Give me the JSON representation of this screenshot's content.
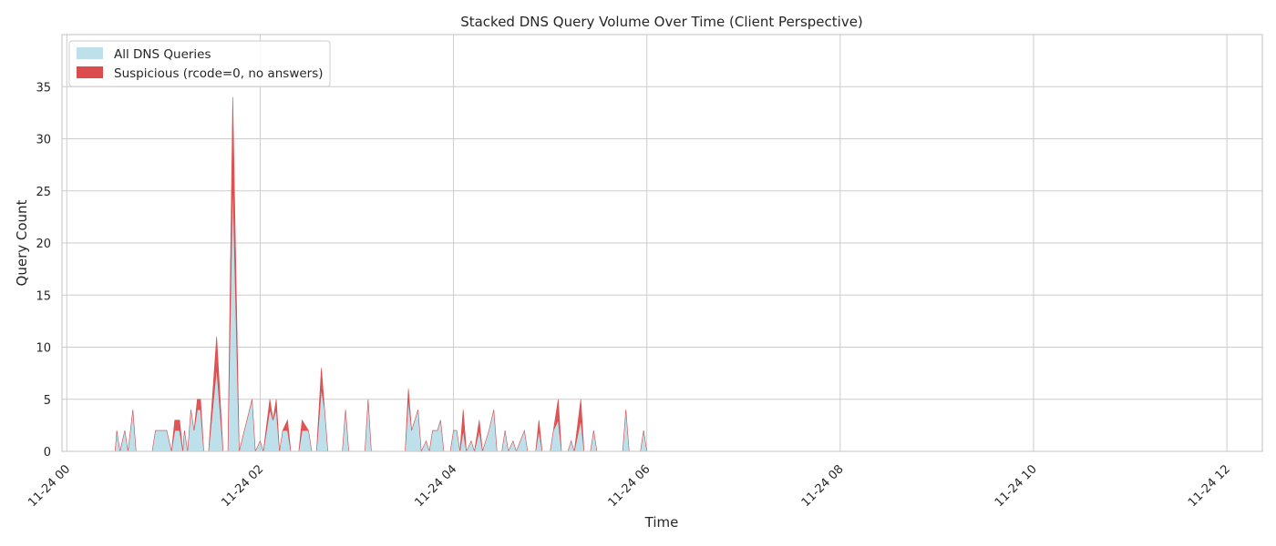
{
  "chart_data": {
    "type": "area",
    "stacked": true,
    "title": "Stacked DNS Query Volume Over Time (Client Perspective)",
    "xlabel": "Time",
    "ylabel": "Query Count",
    "xlim": [
      "2024-11-23T23:57",
      "2024-11-24T12:22"
    ],
    "ylim": [
      0,
      40
    ],
    "x_ticks": [
      "11-24 00",
      "11-24 02",
      "11-24 04",
      "11-24 06",
      "11-24 08",
      "11-24 10",
      "11-24 12"
    ],
    "y_ticks": [
      0,
      5,
      10,
      15,
      20,
      25,
      30,
      35
    ],
    "grid": true,
    "legend_position": "top-left",
    "series": [
      {
        "name": "All DNS Queries",
        "color": "#add8e6",
        "points": [
          [
            "2024-11-24T00:00",
            0
          ],
          [
            "2024-11-24T00:30",
            0
          ],
          [
            "2024-11-24T00:31",
            2
          ],
          [
            "2024-11-24T00:33",
            0
          ],
          [
            "2024-11-24T00:36",
            2
          ],
          [
            "2024-11-24T00:38",
            0
          ],
          [
            "2024-11-24T00:41",
            4
          ],
          [
            "2024-11-24T00:43",
            0
          ],
          [
            "2024-11-24T00:53",
            0
          ],
          [
            "2024-11-24T00:55",
            2
          ],
          [
            "2024-11-24T01:02",
            2
          ],
          [
            "2024-11-24T01:05",
            0
          ],
          [
            "2024-11-24T01:07",
            2
          ],
          [
            "2024-11-24T01:10",
            2
          ],
          [
            "2024-11-24T01:12",
            0
          ],
          [
            "2024-11-24T01:13",
            2
          ],
          [
            "2024-11-24T01:15",
            0
          ],
          [
            "2024-11-24T01:17",
            4
          ],
          [
            "2024-11-24T01:19",
            2
          ],
          [
            "2024-11-24T01:21",
            4
          ],
          [
            "2024-11-24T01:23",
            4
          ],
          [
            "2024-11-24T01:25",
            0
          ],
          [
            "2024-11-24T01:28",
            0
          ],
          [
            "2024-11-24T01:33",
            8
          ],
          [
            "2024-11-24T01:37",
            0
          ],
          [
            "2024-11-24T01:40",
            0
          ],
          [
            "2024-11-24T01:43",
            26
          ],
          [
            "2024-11-24T01:47",
            0
          ],
          [
            "2024-11-24T01:55",
            5
          ],
          [
            "2024-11-24T01:57",
            0
          ],
          [
            "2024-11-24T02:00",
            1
          ],
          [
            "2024-11-24T02:02",
            0
          ],
          [
            "2024-11-24T02:06",
            4
          ],
          [
            "2024-11-24T02:08",
            3
          ],
          [
            "2024-11-24T02:10",
            4
          ],
          [
            "2024-11-24T02:12",
            0
          ],
          [
            "2024-11-24T02:14",
            2
          ],
          [
            "2024-11-24T02:17",
            2
          ],
          [
            "2024-11-24T02:19",
            0
          ],
          [
            "2024-11-24T02:24",
            0
          ],
          [
            "2024-11-24T02:26",
            2
          ],
          [
            "2024-11-24T02:30",
            2
          ],
          [
            "2024-11-24T02:32",
            0
          ],
          [
            "2024-11-24T02:35",
            0
          ],
          [
            "2024-11-24T02:38",
            6
          ],
          [
            "2024-11-24T02:40",
            4
          ],
          [
            "2024-11-24T02:42",
            0
          ],
          [
            "2024-11-24T02:51",
            0
          ],
          [
            "2024-11-24T02:53",
            4
          ],
          [
            "2024-11-24T02:55",
            0
          ],
          [
            "2024-11-24T03:05",
            0
          ],
          [
            "2024-11-24T03:07",
            5
          ],
          [
            "2024-11-24T03:09",
            0
          ],
          [
            "2024-11-24T03:30",
            0
          ],
          [
            "2024-11-24T03:32",
            5
          ],
          [
            "2024-11-24T03:34",
            2
          ],
          [
            "2024-11-24T03:38",
            4
          ],
          [
            "2024-11-24T03:40",
            0
          ],
          [
            "2024-11-24T03:43",
            1
          ],
          [
            "2024-11-24T03:45",
            0
          ],
          [
            "2024-11-24T03:47",
            2
          ],
          [
            "2024-11-24T03:50",
            2
          ],
          [
            "2024-11-24T03:52",
            3
          ],
          [
            "2024-11-24T03:54",
            0
          ],
          [
            "2024-11-24T03:58",
            0
          ],
          [
            "2024-11-24T04:00",
            2
          ],
          [
            "2024-11-24T04:02",
            2
          ],
          [
            "2024-11-24T04:04",
            0
          ],
          [
            "2024-11-24T04:06",
            2
          ],
          [
            "2024-11-24T04:08",
            0
          ],
          [
            "2024-11-24T04:11",
            1
          ],
          [
            "2024-11-24T04:13",
            0
          ],
          [
            "2024-11-24T04:16",
            2
          ],
          [
            "2024-11-24T04:18",
            0
          ],
          [
            "2024-11-24T04:22",
            2
          ],
          [
            "2024-11-24T04:25",
            4
          ],
          [
            "2024-11-24T04:27",
            0
          ],
          [
            "2024-11-24T04:30",
            0
          ],
          [
            "2024-11-24T04:32",
            2
          ],
          [
            "2024-11-24T04:34",
            0
          ],
          [
            "2024-11-24T04:37",
            1
          ],
          [
            "2024-11-24T04:39",
            0
          ],
          [
            "2024-11-24T04:44",
            2
          ],
          [
            "2024-11-24T04:46",
            0
          ],
          [
            "2024-11-24T04:51",
            0
          ],
          [
            "2024-11-24T04:53",
            2
          ],
          [
            "2024-11-24T04:55",
            0
          ],
          [
            "2024-11-24T05:00",
            0
          ],
          [
            "2024-11-24T05:02",
            2
          ],
          [
            "2024-11-24T05:05",
            3
          ],
          [
            "2024-11-24T05:07",
            0
          ],
          [
            "2024-11-24T05:11",
            0
          ],
          [
            "2024-11-24T05:13",
            1
          ],
          [
            "2024-11-24T05:15",
            0
          ],
          [
            "2024-11-24T05:19",
            3
          ],
          [
            "2024-11-24T05:21",
            0
          ],
          [
            "2024-11-24T05:25",
            0
          ],
          [
            "2024-11-24T05:27",
            2
          ],
          [
            "2024-11-24T05:29",
            0
          ],
          [
            "2024-11-24T05:45",
            0
          ],
          [
            "2024-11-24T05:47",
            4
          ],
          [
            "2024-11-24T05:49",
            0
          ],
          [
            "2024-11-24T05:56",
            0
          ],
          [
            "2024-11-24T05:58",
            2
          ],
          [
            "2024-11-24T06:00",
            0
          ]
        ]
      },
      {
        "name": "Suspicious (rcode=0, no answers)",
        "color": "#dc4c4c",
        "points": [
          [
            "2024-11-24T00:55",
            0
          ],
          [
            "2024-11-24T00:57",
            1
          ],
          [
            "2024-11-24T00:59",
            0
          ],
          [
            "2024-11-24T01:07",
            1
          ],
          [
            "2024-11-24T01:10",
            1
          ],
          [
            "2024-11-24T01:12",
            0
          ],
          [
            "2024-11-24T01:21",
            1
          ],
          [
            "2024-11-24T01:23",
            1
          ],
          [
            "2024-11-24T01:25",
            0
          ],
          [
            "2024-11-24T01:33",
            3
          ],
          [
            "2024-11-24T01:43",
            8
          ],
          [
            "2024-11-24T02:06",
            1
          ],
          [
            "2024-11-24T02:10",
            1
          ],
          [
            "2024-11-24T02:17",
            1
          ],
          [
            "2024-11-24T02:26",
            1
          ],
          [
            "2024-11-24T02:38",
            2
          ],
          [
            "2024-11-24T03:32",
            1
          ],
          [
            "2024-11-24T04:06",
            2
          ],
          [
            "2024-11-24T04:16",
            1
          ],
          [
            "2024-11-24T04:53",
            1
          ],
          [
            "2024-11-24T05:05",
            2
          ],
          [
            "2024-11-24T05:19",
            2
          ]
        ]
      }
    ]
  }
}
